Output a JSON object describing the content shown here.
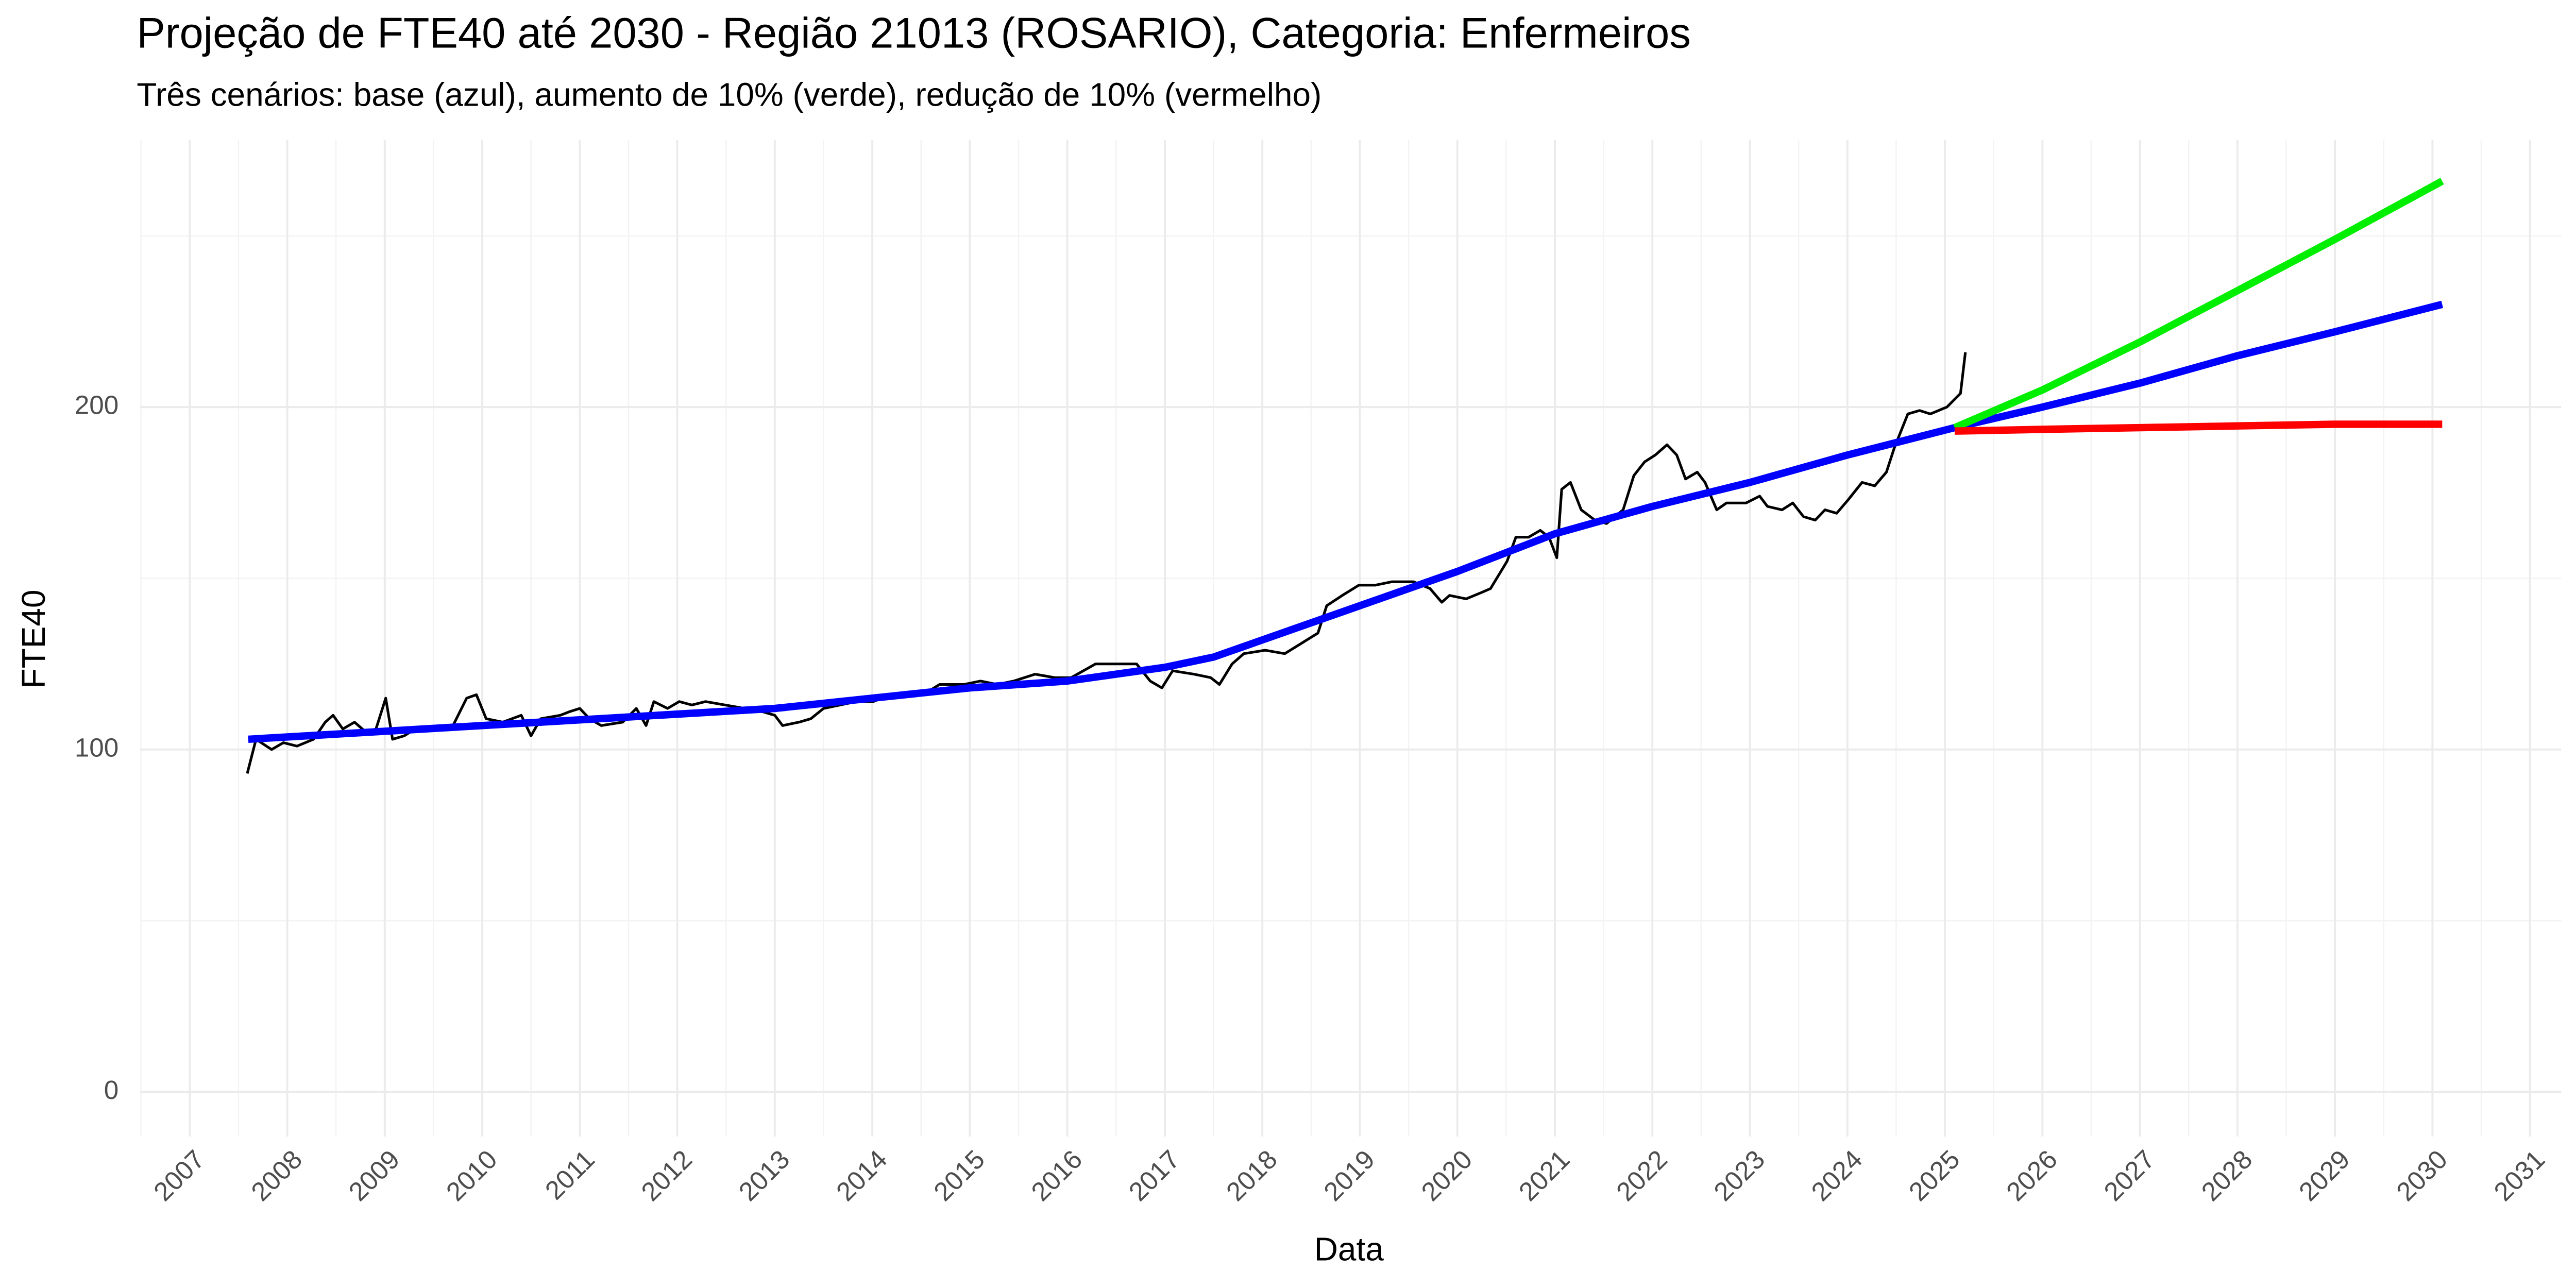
{
  "chart_data": {
    "type": "line",
    "title": "Projeção de FTE40 até 2030 - Região 21013 (ROSARIO), Categoria: Enfermeiros",
    "subtitle": "Três cenários: base (azul), aumento de 10% (verde), redução de 10% (vermelho)",
    "x_label": "Data",
    "y_label": "FTE40",
    "xlim": [
      2006.49,
      2031.32
    ],
    "xticks": [
      2007,
      2008,
      2009,
      2010,
      2011,
      2012,
      2013,
      2014,
      2015,
      2016,
      2017,
      2018,
      2019,
      2020,
      2021,
      2022,
      2023,
      2024,
      2025,
      2026,
      2027,
      2028,
      2029,
      2030,
      2031
    ],
    "ylim": [
      -13,
      278
    ],
    "yticks": [
      0,
      100,
      200
    ],
    "grid": true,
    "series": [
      {
        "color": "#000000",
        "x": [
          2007.59,
          2007.68,
          2007.84,
          2007.96,
          2008.1,
          2008.27,
          2008.39,
          2008.47,
          2008.57,
          2008.69,
          2008.81,
          2008.91,
          2009.01,
          2009.08,
          2009.2,
          2009.31,
          2009.53,
          2009.7,
          2009.84,
          2009.94,
          2010.04,
          2010.21,
          2010.4,
          2010.5,
          2010.6,
          2010.8,
          2010.89,
          2011.0,
          2011.1,
          2011.22,
          2011.44,
          2011.58,
          2011.68,
          2011.76,
          2011.9,
          2012.02,
          2012.15,
          2012.29,
          2012.49,
          2012.69,
          2012.88,
          2013.0,
          2013.08,
          2013.25,
          2013.37,
          2013.5,
          2013.67,
          2013.84,
          2014.01,
          2014.18,
          2014.35,
          2014.52,
          2014.69,
          2014.94,
          2015.11,
          2015.28,
          2015.45,
          2015.67,
          2015.87,
          2016.04,
          2016.29,
          2016.51,
          2016.71,
          2016.85,
          2016.97,
          2017.08,
          2017.3,
          2017.47,
          2017.56,
          2017.69,
          2017.81,
          2018.03,
          2018.23,
          2018.4,
          2018.57,
          2018.66,
          2018.82,
          2018.99,
          2019.16,
          2019.33,
          2019.55,
          2019.72,
          2019.84,
          2019.92,
          2020.09,
          2020.26,
          2020.34,
          2020.51,
          2020.6,
          2020.73,
          2020.85,
          2020.94,
          2021.02,
          2021.07,
          2021.16,
          2021.27,
          2021.41,
          2021.53,
          2021.7,
          2021.81,
          2021.92,
          2022.03,
          2022.15,
          2022.25,
          2022.34,
          2022.46,
          2022.54,
          2022.66,
          2022.76,
          2022.96,
          2023.1,
          2023.18,
          2023.33,
          2023.44,
          2023.55,
          2023.67,
          2023.77,
          2023.89,
          2024.01,
          2024.15,
          2024.28,
          2024.4,
          2024.48,
          2024.62,
          2024.74,
          2024.85,
          2025.02,
          2025.16,
          2025.21
        ],
        "values": [
          93,
          103,
          100,
          102,
          101,
          103,
          108,
          110,
          106,
          108,
          105,
          106,
          115,
          103,
          104,
          106,
          106,
          107,
          115,
          116,
          109,
          108,
          110,
          104,
          109,
          110,
          111,
          112,
          109,
          107,
          108,
          112,
          107,
          114,
          112,
          114,
          113,
          114,
          113,
          112,
          111,
          110,
          107,
          108,
          109,
          112,
          113,
          114,
          114,
          116,
          116,
          116,
          119,
          119,
          120,
          119,
          120,
          122,
          121,
          121,
          125,
          125,
          125,
          120,
          118,
          123,
          122,
          121,
          119,
          125,
          128,
          129,
          128,
          131,
          134,
          142,
          145,
          148,
          148,
          149,
          149,
          147,
          143,
          145,
          144,
          146,
          147,
          155,
          162,
          162,
          164,
          162,
          156,
          176,
          178,
          170,
          167,
          166,
          170,
          180,
          184,
          186,
          189,
          186,
          179,
          181,
          178,
          170,
          172,
          172,
          174,
          171,
          170,
          172,
          168,
          167,
          170,
          169,
          173,
          178,
          177,
          181,
          188,
          198,
          199,
          198,
          200,
          204,
          216
        ]
      },
      {
        "color": "#0000ff",
        "x": [
          2007.6,
          2010,
          2013,
          2015,
          2016,
          2017,
          2017.5,
          2018,
          2019,
          2020,
          2021,
          2022,
          2023,
          2024,
          2025.1,
          2026,
          2027,
          2028,
          2029,
          2030.1
        ],
        "values": [
          103,
          107,
          112,
          118,
          120,
          124,
          127,
          132,
          142,
          152,
          163,
          171,
          178,
          186,
          194,
          200,
          207,
          215,
          222,
          230
        ]
      },
      {
        "color": "#00ee00",
        "x": [
          2025.1,
          2026,
          2027,
          2028,
          2029,
          2030.1
        ],
        "values": [
          194,
          205,
          219,
          234,
          249,
          266
        ]
      },
      {
        "color": "#ff0000",
        "x": [
          2025.1,
          2026,
          2027,
          2028,
          2029,
          2030.1
        ],
        "values": [
          193,
          193.5,
          194,
          194.5,
          195,
          195
        ]
      }
    ]
  }
}
